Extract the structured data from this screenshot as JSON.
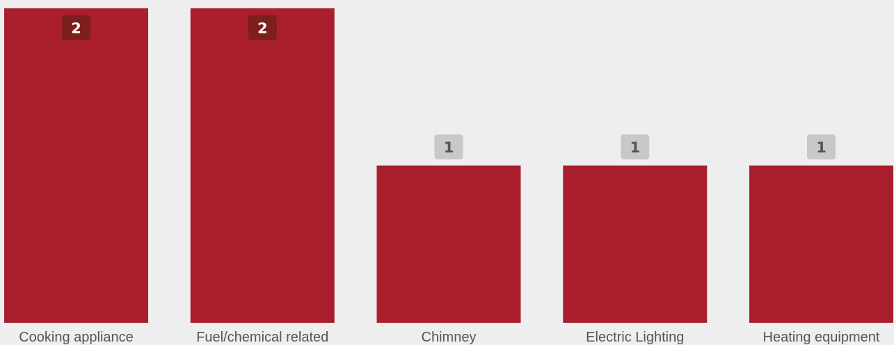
{
  "chart_data": {
    "type": "bar",
    "categories": [
      "Cooking appliance",
      "Fuel/chemical related",
      "Chimney",
      "Electric Lighting",
      "Heating equipment"
    ],
    "values": [
      2,
      2,
      1,
      1,
      1
    ],
    "ylim": [
      0,
      2
    ],
    "grid": false,
    "title": "",
    "xlabel": "",
    "ylabel": ""
  },
  "colors": {
    "background": "#eeeeee",
    "bar": "#aa1f2e",
    "badge_inside_bg": "#7d1f1c",
    "badge_inside_text": "#ffffff",
    "badge_outside_bg": "#c8c8c8",
    "badge_outside_text": "#555555",
    "category_text": "#555555"
  }
}
